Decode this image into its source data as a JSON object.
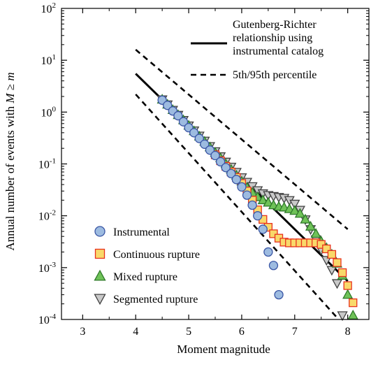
{
  "chart_data": {
    "type": "scatter",
    "xlabel": "Moment magnitude",
    "ylabel_parts": [
      "Annual number of events with ",
      "M",
      " ≥ ",
      "m"
    ],
    "xlim": [
      2.6,
      8.4
    ],
    "ylim_log10": [
      -4,
      2
    ],
    "y_scale": "log",
    "x_ticks": [
      3,
      4,
      5,
      6,
      7,
      8
    ],
    "y_ticks": [
      {
        "exp": -4,
        "base": "10",
        "sup": "-4"
      },
      {
        "exp": -3,
        "base": "10",
        "sup": "-3"
      },
      {
        "exp": -2,
        "base": "10",
        "sup": "-2"
      },
      {
        "exp": -1,
        "base": "10",
        "sup": "-1"
      },
      {
        "exp": 0,
        "base": "10",
        "sup": "0"
      },
      {
        "exp": 1,
        "base": "10",
        "sup": "1"
      },
      {
        "exp": 2,
        "base": "10",
        "sup": "2"
      }
    ],
    "grid": false,
    "lines": [
      {
        "name": "Gutenberg-Richter relationship using instrumental catalog",
        "style": "solid",
        "x": [
          4.0,
          8.0
        ],
        "y": [
          5.5,
          0.00055
        ]
      },
      {
        "name": "5th/95th percentile",
        "style": "dashed",
        "x": [
          4.0,
          8.0
        ],
        "y": [
          16,
          0.0055
        ]
      },
      {
        "name": "5th/95th percentile",
        "style": "dashed",
        "x": [
          4.0,
          7.83
        ],
        "y": [
          2.2,
          0.0001
        ]
      }
    ],
    "series": [
      {
        "name": "Instrumental",
        "marker": "circle",
        "fill": "#9dbbe0",
        "stroke": "#3a56a5",
        "x": [
          4.5,
          4.6,
          4.7,
          4.8,
          4.9,
          5.0,
          5.1,
          5.2,
          5.3,
          5.4,
          5.5,
          5.6,
          5.7,
          5.8,
          5.9,
          6.0,
          6.1,
          6.2,
          6.3,
          6.4,
          6.5,
          6.6,
          6.7
        ],
        "y": [
          1.7,
          1.35,
          1.05,
          0.85,
          0.65,
          0.5,
          0.4,
          0.31,
          0.24,
          0.185,
          0.145,
          0.11,
          0.085,
          0.065,
          0.05,
          0.036,
          0.025,
          0.016,
          0.01,
          0.0055,
          0.002,
          0.0011,
          0.0003
        ]
      },
      {
        "name": "Continuous rupture",
        "marker": "square",
        "fill": "#f9d96a",
        "stroke": "#e8321e",
        "x": [
          5.5,
          5.6,
          5.7,
          5.8,
          5.9,
          6.0,
          6.1,
          6.2,
          6.3,
          6.4,
          6.5,
          6.6,
          6.7,
          6.8,
          6.9,
          7.0,
          7.1,
          7.2,
          7.3,
          7.4,
          7.5,
          7.6,
          7.7,
          7.8,
          7.9,
          8.0,
          8.1
        ],
        "y": [
          0.15,
          0.115,
          0.09,
          0.07,
          0.055,
          0.042,
          0.03,
          0.02,
          0.013,
          0.0085,
          0.006,
          0.0045,
          0.0037,
          0.0031,
          0.003,
          0.003,
          0.003,
          0.003,
          0.003,
          0.003,
          0.0028,
          0.0023,
          0.0018,
          0.00125,
          0.0008,
          0.00045,
          0.00021
        ]
      },
      {
        "name": "Mixed rupture",
        "marker": "triangle-up",
        "fill": "#6fc258",
        "stroke": "#2f7a2a",
        "x": [
          4.5,
          4.6,
          4.7,
          4.8,
          4.9,
          5.0,
          5.1,
          5.2,
          5.3,
          5.4,
          5.5,
          5.6,
          5.7,
          5.8,
          5.9,
          6.0,
          6.1,
          6.2,
          6.3,
          6.4,
          6.5,
          6.6,
          6.7,
          6.8,
          6.9,
          7.0,
          7.1,
          7.2,
          7.3,
          7.4,
          7.5,
          7.6,
          7.7,
          7.8,
          7.9,
          8.0,
          8.1
        ],
        "y": [
          1.75,
          1.4,
          1.1,
          0.88,
          0.7,
          0.55,
          0.43,
          0.34,
          0.27,
          0.21,
          0.165,
          0.13,
          0.1,
          0.078,
          0.06,
          0.046,
          0.035,
          0.028,
          0.023,
          0.02,
          0.018,
          0.016,
          0.015,
          0.0145,
          0.0135,
          0.0125,
          0.011,
          0.0085,
          0.0062,
          0.0045,
          0.0032,
          0.0024,
          0.0018,
          0.0012,
          0.0007,
          0.0003,
          0.00012
        ]
      },
      {
        "name": "Segmented rupture",
        "marker": "triangle-down",
        "fill": "#c9c9c9",
        "stroke": "#404040",
        "x": [
          4.5,
          4.6,
          4.7,
          4.8,
          4.9,
          5.0,
          5.1,
          5.2,
          5.3,
          5.4,
          5.5,
          5.6,
          5.7,
          5.8,
          5.9,
          6.0,
          6.1,
          6.2,
          6.3,
          6.4,
          6.5,
          6.6,
          6.7,
          6.8,
          6.9,
          7.0,
          7.1,
          7.2,
          7.3,
          7.4,
          7.5,
          7.6,
          7.7,
          7.8,
          7.9
        ],
        "y": [
          1.75,
          1.4,
          1.1,
          0.88,
          0.7,
          0.55,
          0.44,
          0.35,
          0.28,
          0.22,
          0.175,
          0.14,
          0.11,
          0.088,
          0.07,
          0.055,
          0.045,
          0.037,
          0.031,
          0.027,
          0.025,
          0.024,
          0.023,
          0.022,
          0.02,
          0.017,
          0.013,
          0.0085,
          0.0055,
          0.0035,
          0.0022,
          0.0014,
          0.0009,
          0.0005,
          0.00012
        ]
      }
    ],
    "legend_top": [
      {
        "kind": "solid",
        "lines": [
          "Gutenberg-Richter",
          "relationship using",
          "instrumental catalog"
        ]
      },
      {
        "kind": "dashed",
        "lines": [
          "5th/95th percentile"
        ]
      }
    ],
    "legend_bottom_placement": "bottom-left"
  }
}
